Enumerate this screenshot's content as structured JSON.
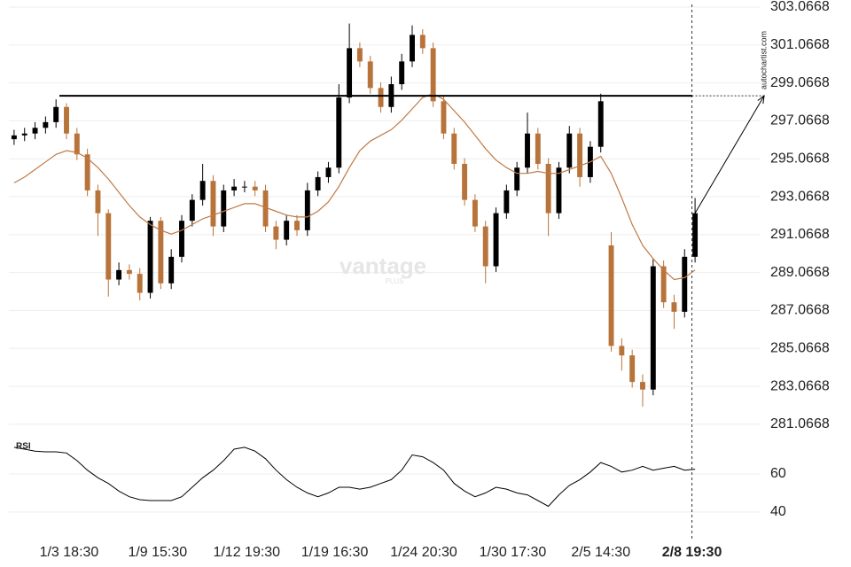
{
  "chart_data": {
    "type": "candlestick",
    "x": [
      0,
      1,
      2,
      3,
      4,
      5,
      6,
      7,
      8,
      9,
      10,
      11,
      12,
      13,
      14,
      15,
      16,
      17,
      18,
      19,
      20,
      21,
      22,
      23,
      24,
      25,
      26,
      27,
      28,
      29,
      30,
      31,
      32,
      33,
      34,
      35,
      36,
      37,
      38,
      39,
      40,
      41,
      42,
      43,
      44,
      45,
      46,
      47,
      48,
      49,
      50,
      51,
      52,
      53,
      54,
      55,
      56,
      57,
      58,
      59,
      60,
      61,
      62,
      63,
      64,
      65
    ],
    "open": [
      296.1,
      296.3,
      296.4,
      296.7,
      297.0,
      297.8,
      296.4,
      295.3,
      293.4,
      292.2,
      288.7,
      289.2,
      289.0,
      288.0,
      291.8,
      288.5,
      289.9,
      291.8,
      292.9,
      293.9,
      291.5,
      293.4,
      293.6,
      293.6,
      293.4,
      291.5,
      290.8,
      291.8,
      291.3,
      293.4,
      294.1,
      294.6,
      298.3,
      300.9,
      300.2,
      298.8,
      297.8,
      299.0,
      300.2,
      301.6,
      300.9,
      298.1,
      296.4,
      294.8,
      292.9,
      291.5,
      289.4,
      292.2,
      293.4,
      294.6,
      296.4,
      294.8,
      292.2,
      294.6,
      296.4,
      294.1,
      295.7,
      290.5,
      285.2,
      284.7,
      283.3,
      282.9,
      289.4,
      287.5,
      287.0,
      289.9
    ],
    "high": [
      296.6,
      296.7,
      297.0,
      297.3,
      298.2,
      298.0,
      296.7,
      295.6,
      293.7,
      292.4,
      289.6,
      289.5,
      289.3,
      292.0,
      292.0,
      290.3,
      292.1,
      293.2,
      294.8,
      294.2,
      293.7,
      294.0,
      293.9,
      293.9,
      293.7,
      291.8,
      292.1,
      292.1,
      293.8,
      294.4,
      294.9,
      299.0,
      302.2,
      301.2,
      300.5,
      299.1,
      299.4,
      300.6,
      302.1,
      301.9,
      301.2,
      298.4,
      296.7,
      295.1,
      293.2,
      291.8,
      292.5,
      293.7,
      294.9,
      297.5,
      296.7,
      295.1,
      294.9,
      296.8,
      296.7,
      296.0,
      298.5,
      291.2,
      285.6,
      285.0,
      283.7,
      289.8,
      289.7,
      287.9,
      290.3,
      293.0
    ],
    "low": [
      295.8,
      296.0,
      296.1,
      296.4,
      296.7,
      296.1,
      295.0,
      293.1,
      291.0,
      287.8,
      288.4,
      288.7,
      287.6,
      287.7,
      288.2,
      288.2,
      289.6,
      291.5,
      292.6,
      291.0,
      291.2,
      293.1,
      293.3,
      293.1,
      291.2,
      290.3,
      290.5,
      291.0,
      291.0,
      293.1,
      293.8,
      294.3,
      298.0,
      299.9,
      298.5,
      297.5,
      297.5,
      298.7,
      299.9,
      300.6,
      297.8,
      296.1,
      294.5,
      292.6,
      291.2,
      288.5,
      289.1,
      291.9,
      293.1,
      294.3,
      294.5,
      291.0,
      291.9,
      294.3,
      293.6,
      293.8,
      295.4,
      284.9,
      283.9,
      283.0,
      282.0,
      282.6,
      287.2,
      286.1,
      286.7,
      289.6
    ],
    "close": [
      296.3,
      296.4,
      296.7,
      297.0,
      297.8,
      296.4,
      295.3,
      293.4,
      292.2,
      288.7,
      289.2,
      289.0,
      288.0,
      291.8,
      288.5,
      289.9,
      291.8,
      292.9,
      293.9,
      291.5,
      293.4,
      293.6,
      293.6,
      293.4,
      291.5,
      290.8,
      291.8,
      291.3,
      293.4,
      294.1,
      294.6,
      298.3,
      300.9,
      300.2,
      298.8,
      297.8,
      299.0,
      300.2,
      301.6,
      300.9,
      298.1,
      296.4,
      294.8,
      292.9,
      291.5,
      289.4,
      292.2,
      293.4,
      294.6,
      296.4,
      294.8,
      292.2,
      294.6,
      296.4,
      294.1,
      295.7,
      298.1,
      285.2,
      284.7,
      283.3,
      282.9,
      289.4,
      287.5,
      287.0,
      289.9,
      292.2
    ],
    "up_color": "#000000",
    "down_color": "#b8733a",
    "moving_average": {
      "color": "#c07a45",
      "values": [
        293.8,
        294.1,
        294.5,
        294.9,
        295.3,
        295.5,
        295.4,
        295.1,
        294.6,
        294.0,
        293.3,
        292.6,
        292.0,
        291.6,
        291.3,
        291.1,
        291.3,
        291.6,
        291.9,
        292.1,
        292.3,
        292.5,
        292.7,
        292.7,
        292.5,
        292.3,
        292.1,
        292.0,
        292.0,
        292.3,
        292.8,
        293.6,
        294.6,
        295.5,
        296.0,
        296.3,
        296.6,
        297.1,
        297.7,
        298.3,
        298.5,
        298.2,
        297.6,
        297.0,
        296.3,
        295.6,
        295.0,
        294.6,
        294.3,
        294.3,
        294.4,
        294.3,
        294.3,
        294.5,
        294.7,
        294.9,
        295.2,
        294.3,
        293.0,
        291.6,
        290.5,
        289.8,
        289.2,
        288.7,
        288.8,
        289.2
      ]
    },
    "resistance": 298.39,
    "ylim": [
      280.55,
      303.44
    ],
    "yticks": [
      303.0668,
      301.0668,
      299.0668,
      297.0668,
      295.0668,
      293.0668,
      291.0668,
      289.0668,
      287.0668,
      285.0668,
      283.0668,
      281.0668
    ],
    "xlim": [
      -0.5,
      65.5
    ],
    "xticks": [
      {
        "value": 5.25,
        "label": "1/3 18:30"
      },
      {
        "value": 13.7,
        "label": "1/9 15:30"
      },
      {
        "value": 22.2,
        "label": "1/12 19:30"
      },
      {
        "value": 30.6,
        "label": "1/19 16:30"
      },
      {
        "value": 39.1,
        "label": "1/24 20:30"
      },
      {
        "value": 47.6,
        "label": "1/30 17:30"
      },
      {
        "value": 56.0,
        "label": "2/5 14:30"
      },
      {
        "value": 64.7,
        "label": "2/8 19:30"
      }
    ],
    "rsi": {
      "label": "RSI",
      "color": "#000000",
      "values": [
        74,
        73,
        72,
        71.6,
        71.6,
        71,
        67,
        62,
        58,
        55,
        51,
        48,
        46.5,
        46,
        46,
        46,
        48,
        53,
        58,
        62,
        67,
        73,
        74,
        72,
        68,
        62,
        57,
        53,
        50,
        48,
        50,
        53,
        53,
        52,
        53,
        55,
        57,
        62,
        70,
        69,
        66,
        62,
        55,
        51,
        48,
        50,
        53,
        52,
        50,
        49,
        46,
        43,
        49,
        54,
        57,
        61,
        66,
        64,
        61,
        62,
        64,
        62,
        63,
        64,
        62,
        62.5
      ],
      "ylim": [
        27.4,
        78.6
      ],
      "yticks": [
        60,
        40
      ]
    },
    "source": "autochartist.com",
    "watermark": {
      "brand": "vantage",
      "sub": "PLUS"
    }
  }
}
